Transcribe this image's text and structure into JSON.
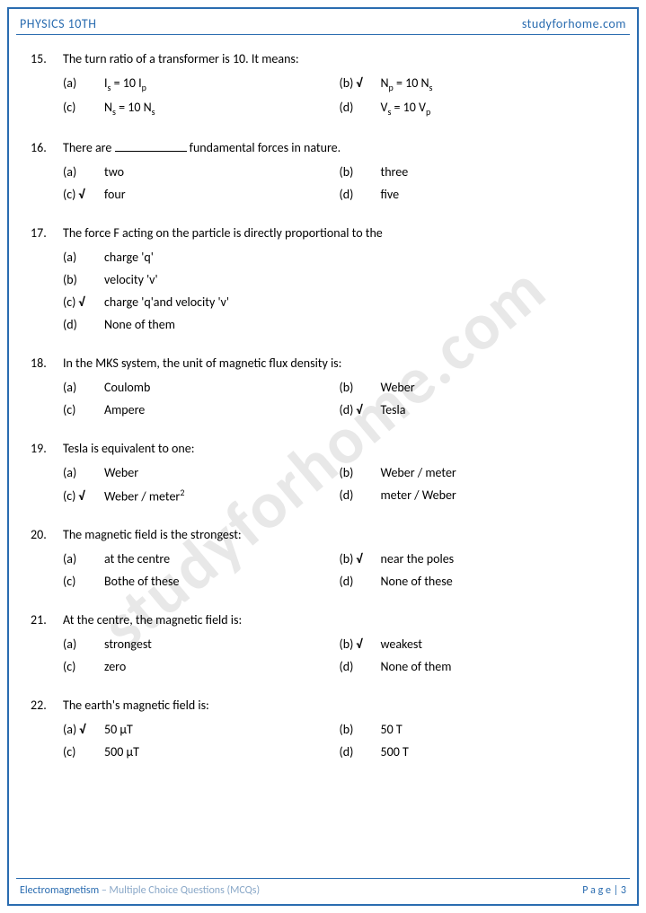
{
  "header": {
    "left": "PHYSICS 10TH",
    "right": "studyforhome.com"
  },
  "watermark": "studyforhome.com",
  "footer": {
    "topic": "Electromagnetism",
    "sub": " – Multiple Choice Questions (MCQs)",
    "page": "P a g e | 3"
  },
  "questions": [
    {
      "num": "15.",
      "text": "The turn ratio of a transformer is 10. It means:",
      "layout": "two-col",
      "options": [
        {
          "letter": "(a)",
          "check": false,
          "html": "I<span class='sub'>s</span> = 10 I<span class='sub'>p</span>"
        },
        {
          "letter": "(b)",
          "check": true,
          "html": "N<span class='sub'>p</span> = 10 N<span class='sub'>s</span>"
        },
        {
          "letter": "(c)",
          "check": false,
          "html": "N<span class='sub'>s</span> = 10 N<span class='sub'>s</span>"
        },
        {
          "letter": "(d)",
          "check": false,
          "html": "V<span class='sub'>s</span> = 10 V<span class='sub'>p</span>"
        }
      ]
    },
    {
      "num": "16.",
      "text": "There are <span class='blank'></span> fundamental forces in nature.",
      "layout": "two-col",
      "options": [
        {
          "letter": "(a)",
          "check": false,
          "html": "two"
        },
        {
          "letter": "(b)",
          "check": false,
          "html": "three"
        },
        {
          "letter": "(c)",
          "check": true,
          "html": "four"
        },
        {
          "letter": "(d)",
          "check": false,
          "html": "five"
        }
      ]
    },
    {
      "num": "17.",
      "text": "The force F acting on the particle is directly proportional to the",
      "layout": "one-col",
      "options": [
        {
          "letter": "(a)",
          "check": false,
          "html": "charge 'q'"
        },
        {
          "letter": "(b)",
          "check": false,
          "html": "velocity 'v'"
        },
        {
          "letter": "(c)",
          "check": true,
          "html": "charge 'q'and velocity 'v'"
        },
        {
          "letter": "(d)",
          "check": false,
          "html": "None of them"
        }
      ]
    },
    {
      "num": "18.",
      "text": "In the MKS system, the unit of magnetic flux density is:",
      "layout": "two-col",
      "options": [
        {
          "letter": "(a)",
          "check": false,
          "html": "Coulomb"
        },
        {
          "letter": "(b)",
          "check": false,
          "html": "Weber"
        },
        {
          "letter": "(c)",
          "check": false,
          "html": "Ampere"
        },
        {
          "letter": "(d)",
          "check": true,
          "html": "Tesla"
        }
      ]
    },
    {
      "num": "19.",
      "text": "Tesla is equivalent to one:",
      "layout": "two-col",
      "options": [
        {
          "letter": "(a)",
          "check": false,
          "html": "Weber"
        },
        {
          "letter": "(b)",
          "check": false,
          "html": "Weber / meter"
        },
        {
          "letter": "(c)",
          "check": true,
          "html": "Weber / meter<span class='sup'>2</span>"
        },
        {
          "letter": "(d)",
          "check": false,
          "html": "meter / Weber"
        }
      ]
    },
    {
      "num": "20.",
      "text": "The magnetic field is the strongest:",
      "layout": "two-col",
      "options": [
        {
          "letter": "(a)",
          "check": false,
          "html": "at the centre"
        },
        {
          "letter": "(b)",
          "check": true,
          "html": "near the poles"
        },
        {
          "letter": "(c)",
          "check": false,
          "html": "Bothe of these"
        },
        {
          "letter": "(d)",
          "check": false,
          "html": "None of these"
        }
      ]
    },
    {
      "num": "21.",
      "text": "At the centre, the magnetic field is:",
      "layout": "two-col",
      "options": [
        {
          "letter": "(a)",
          "check": false,
          "html": "strongest"
        },
        {
          "letter": "(b)",
          "check": true,
          "html": "weakest"
        },
        {
          "letter": "(c)",
          "check": false,
          "html": "zero"
        },
        {
          "letter": "(d)",
          "check": false,
          "html": "None of them"
        }
      ]
    },
    {
      "num": "22.",
      "text": "The earth's magnetic field is:",
      "layout": "two-col",
      "options": [
        {
          "letter": "(a)",
          "check": true,
          "html": "50 μT"
        },
        {
          "letter": "(b)",
          "check": false,
          "html": "50 T"
        },
        {
          "letter": "(c)",
          "check": false,
          "html": "500 μT"
        },
        {
          "letter": "(d)",
          "check": false,
          "html": "500 T"
        }
      ]
    }
  ]
}
